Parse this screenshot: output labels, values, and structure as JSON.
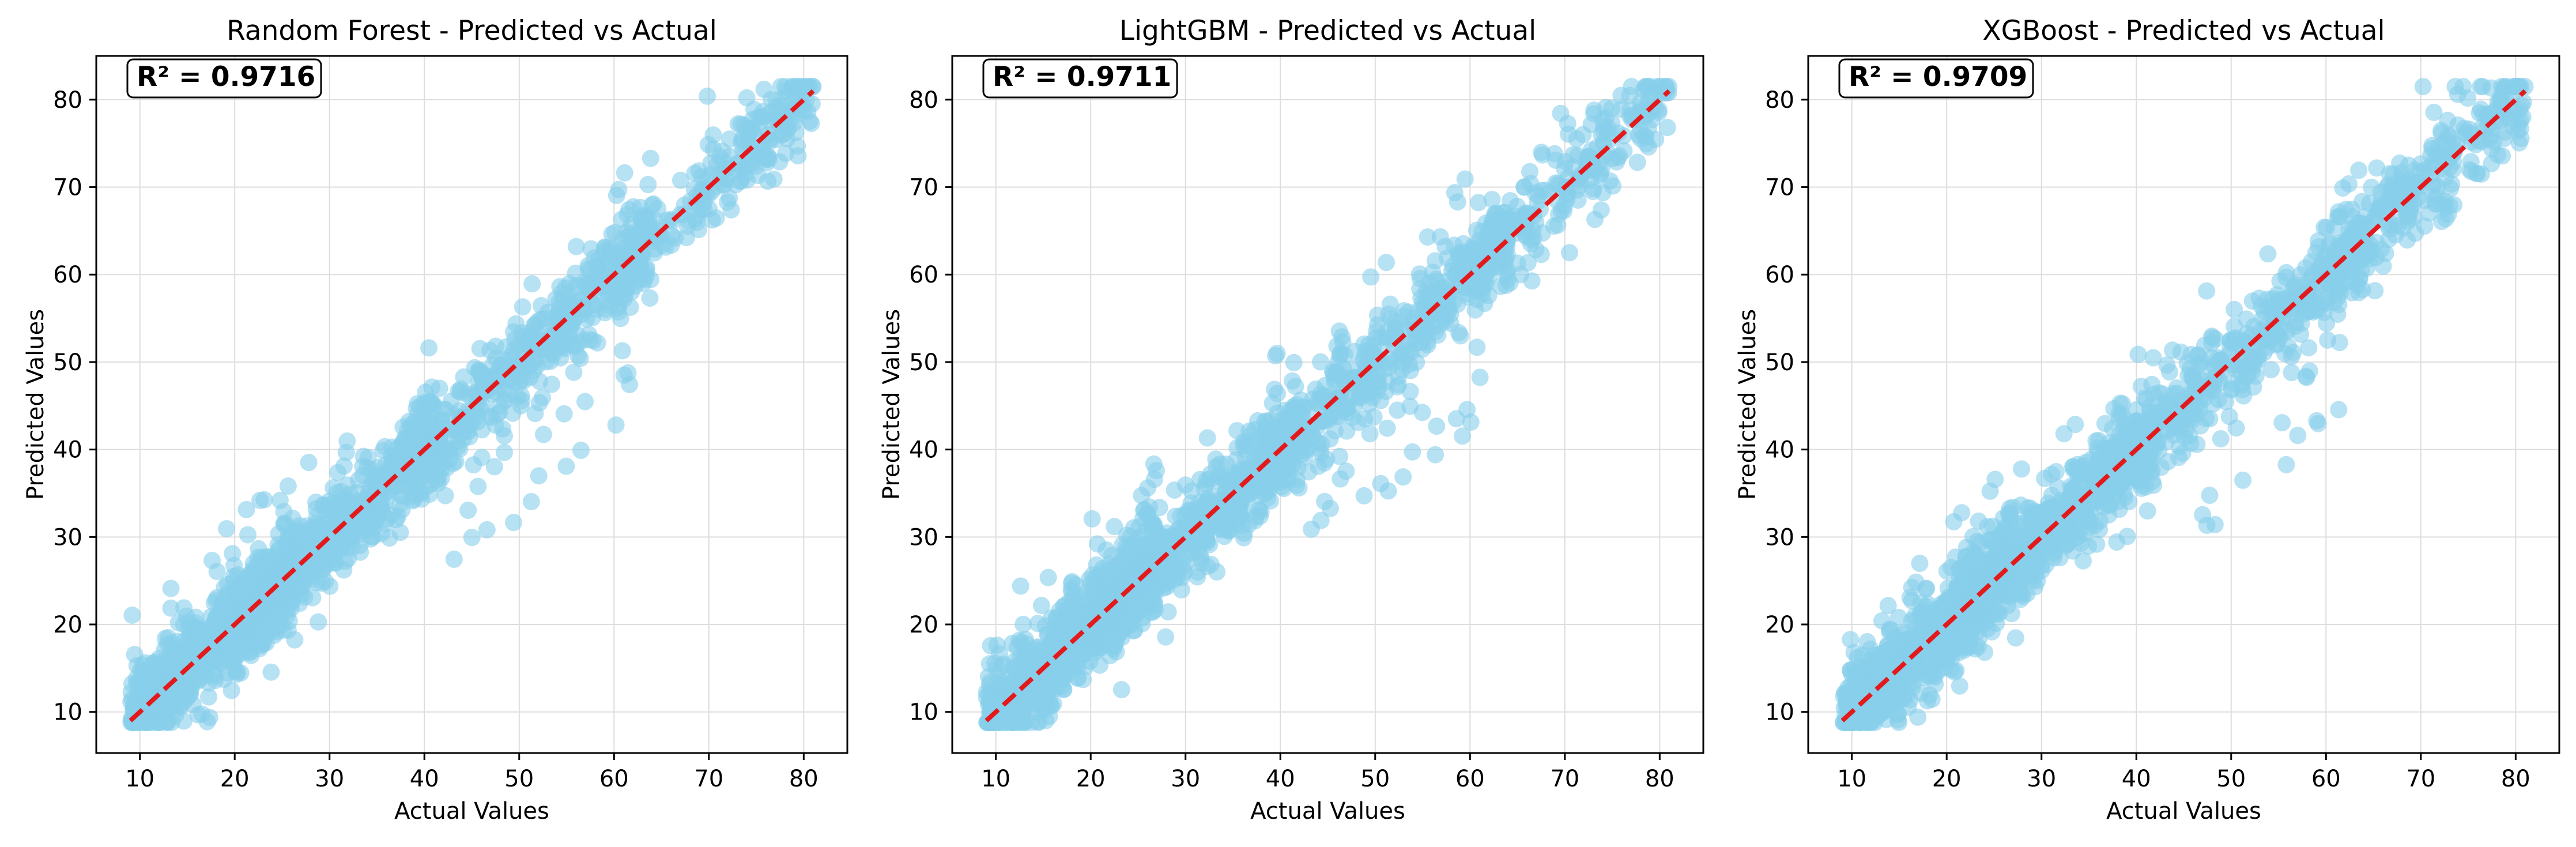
{
  "colors": {
    "points": "#87CEEB",
    "line": "#e31a1c",
    "grid": "#dddddd",
    "frame": "#000000"
  },
  "chart_data": [
    {
      "type": "scatter",
      "title": "Random Forest - Predicted vs Actual",
      "xlabel": "Actual Values",
      "ylabel": "Predicted Values",
      "annotation": "R² = 0.9716",
      "xlim": [
        5.4,
        84.6
      ],
      "ylim": [
        5.3,
        85.0
      ],
      "xticks": [
        10,
        20,
        30,
        40,
        50,
        60,
        70,
        80
      ],
      "yticks": [
        10,
        20,
        30,
        40,
        50,
        60,
        70,
        80
      ],
      "grid": true,
      "reference_line": [
        [
          9,
          9
        ],
        [
          81,
          81
        ]
      ],
      "point_count": 2000,
      "spread": 2.6
    },
    {
      "type": "scatter",
      "title": "LightGBM - Predicted vs Actual",
      "xlabel": "Actual Values",
      "ylabel": "Predicted Values",
      "annotation": "R² = 0.9711",
      "xlim": [
        5.4,
        84.6
      ],
      "ylim": [
        5.3,
        85.0
      ],
      "xticks": [
        10,
        20,
        30,
        40,
        50,
        60,
        70,
        80
      ],
      "yticks": [
        10,
        20,
        30,
        40,
        50,
        60,
        70,
        80
      ],
      "grid": true,
      "reference_line": [
        [
          9,
          9
        ],
        [
          81,
          81
        ]
      ],
      "point_count": 2000,
      "spread": 2.7
    },
    {
      "type": "scatter",
      "title": "XGBoost - Predicted vs Actual",
      "xlabel": "Actual Values",
      "ylabel": "Predicted Values",
      "annotation": "R² = 0.9709",
      "xlim": [
        5.4,
        84.6
      ],
      "ylim": [
        5.3,
        85.0
      ],
      "xticks": [
        10,
        20,
        30,
        40,
        50,
        60,
        70,
        80
      ],
      "yticks": [
        10,
        20,
        30,
        40,
        50,
        60,
        70,
        80
      ],
      "grid": true,
      "reference_line": [
        [
          9,
          9
        ],
        [
          81,
          81
        ]
      ],
      "point_count": 2000,
      "spread": 2.75
    }
  ]
}
